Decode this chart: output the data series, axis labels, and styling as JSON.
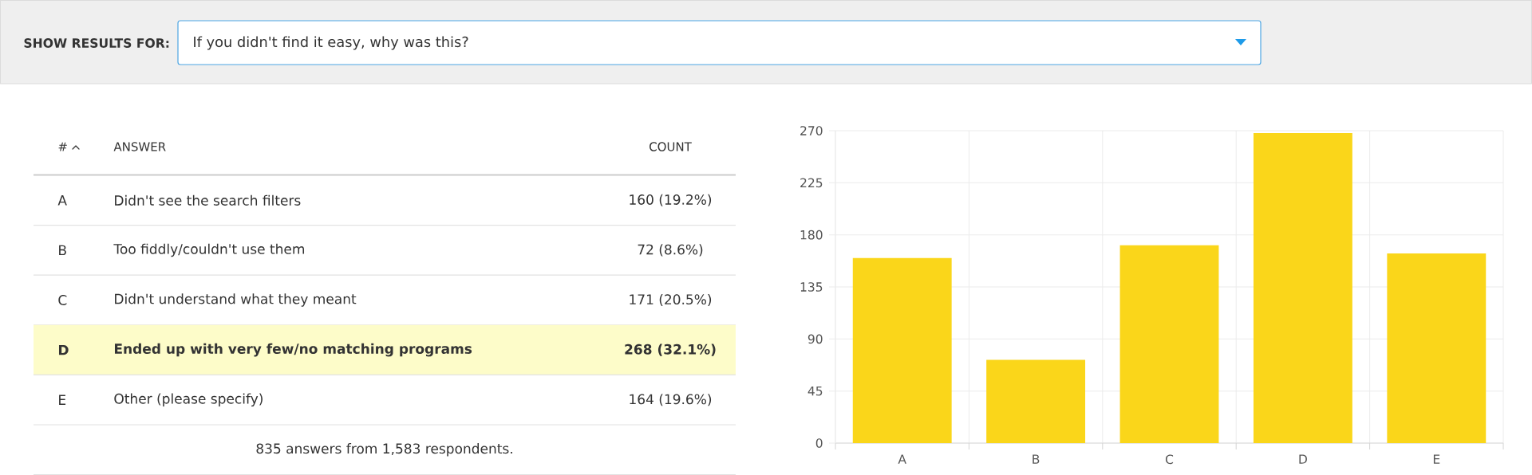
{
  "chart_data": {
    "type": "bar",
    "title": "If you didn't find it easy, why was this?",
    "categories": [
      "A",
      "B",
      "C",
      "D",
      "E"
    ],
    "values": [
      160,
      72,
      171,
      268,
      164
    ],
    "color": "#fad61a",
    "ylim": [
      0,
      270
    ],
    "yticks": [
      0,
      45,
      90,
      135,
      180,
      225,
      270
    ],
    "grid": true,
    "annotations": [
      "SHOW RESULTS FOR:",
      "#",
      "ANSWER",
      "COUNT",
      "Didn't see the search filters",
      "160 (19.2%)",
      "Too fiddly/couldn't use them",
      "72 (8.6%)",
      "Didn't understand what they meant",
      "171 (20.5%)",
      "Ended up with very few/no matching programs",
      "268 (32.1%)",
      "Other (please specify)",
      "164 (19.6%)",
      "835 answers from 1,583 respondents."
    ]
  }
}
